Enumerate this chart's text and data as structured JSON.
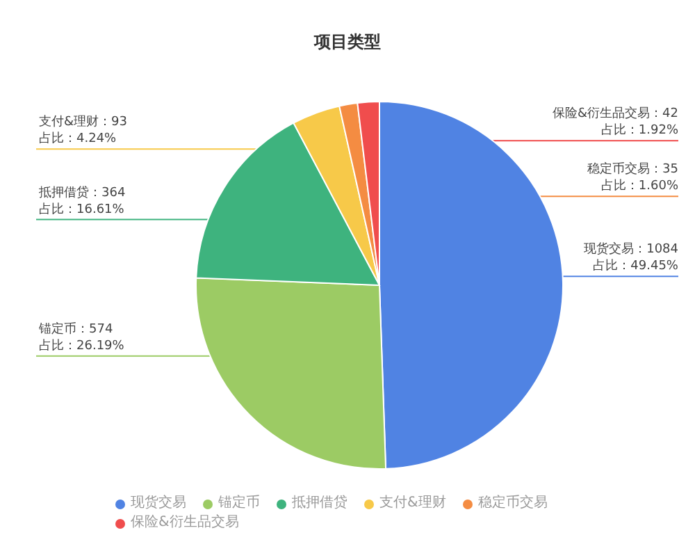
{
  "chart_data": {
    "type": "pie",
    "title": "项目类型",
    "categories": [
      "现货交易",
      "锚定币",
      "抵押借贷",
      "支付&理财",
      "稳定币交易",
      "保险&衍生品交易"
    ],
    "values": [
      1084,
      574,
      364,
      93,
      35,
      42
    ],
    "value_labels": [
      "现货交易：1084\n占比：49.45%",
      "锚定币：574\n占比：26.19%",
      "抵押借贷：364\n占比：16.61%",
      "支付&理财：93\n占比：4.24%",
      "稳定币交易：35\n占比：1.60%",
      "保险&衍生品交易：42\n占比：1.92%"
    ],
    "colors": [
      "#5083e3",
      "#9ccb64",
      "#3eb37e",
      "#f7c949",
      "#f48c42",
      "#f04d4d"
    ],
    "legend": "bottom"
  }
}
